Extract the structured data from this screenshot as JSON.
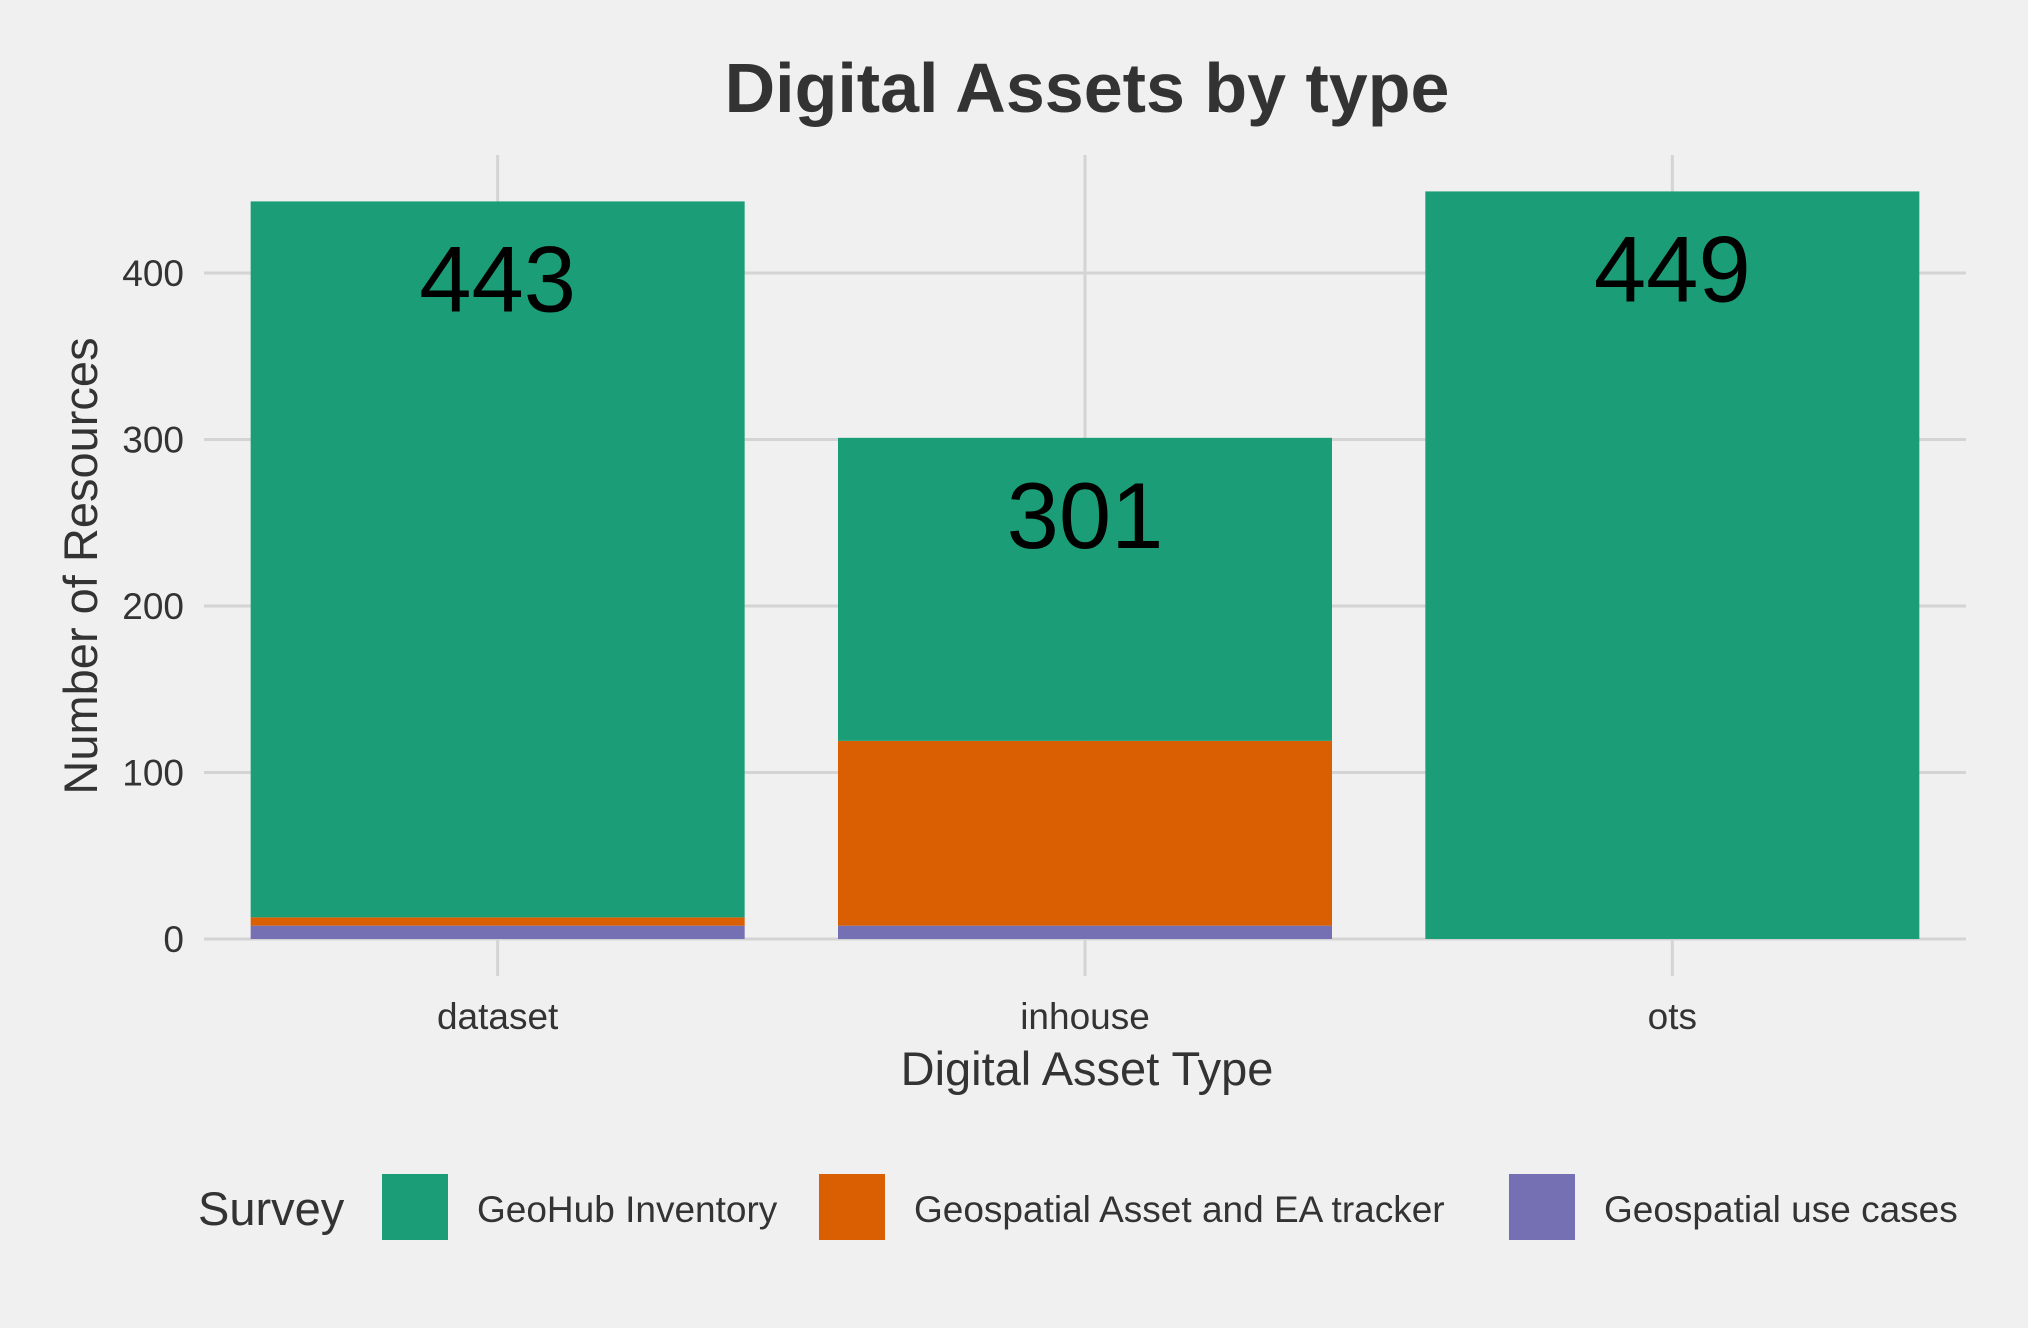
{
  "chart_data": {
    "type": "bar",
    "stacked": true,
    "title": "Digital Assets by type",
    "xlabel": "Digital Asset Type",
    "ylabel": "Number of Resources",
    "categories": [
      "dataset",
      "inhouse",
      "ots"
    ],
    "ylim": [
      0,
      450
    ],
    "yticks": [
      0,
      100,
      200,
      300,
      400
    ],
    "grid": true,
    "legend": {
      "title": "Survey",
      "position": "bottom"
    },
    "series": [
      {
        "name": "Geospatial use cases",
        "color": "#7570b3",
        "values": [
          8,
          8,
          0
        ]
      },
      {
        "name": "Geospatial Asset and EA tracker",
        "color": "#d95f02",
        "values": [
          5,
          111,
          0
        ]
      },
      {
        "name": "GeoHub Inventory",
        "color": "#1b9e77",
        "values": [
          430,
          182,
          449
        ]
      }
    ],
    "totals": [
      443,
      301,
      449
    ],
    "data_labels": [
      "443",
      "301",
      "449"
    ]
  }
}
